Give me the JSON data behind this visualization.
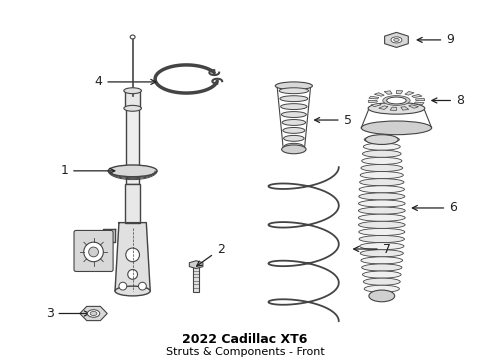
{
  "title": "2022 Cadillac XT6",
  "subtitle": "Struts & Components - Front",
  "bg_color": "#ffffff",
  "line_color": "#444444",
  "label_color": "#222222",
  "title_color": "#000000",
  "title_fontsize": 8,
  "label_fontsize": 9,
  "figsize": [
    4.9,
    3.6
  ],
  "dpi": 100
}
